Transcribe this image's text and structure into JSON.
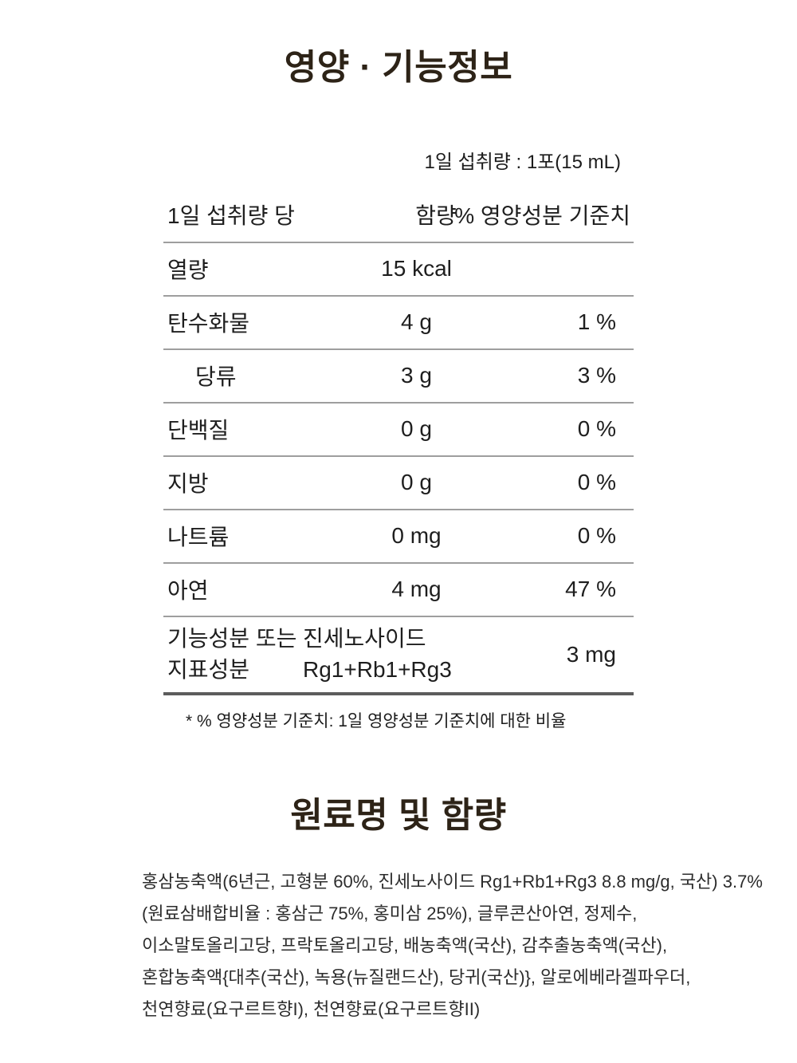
{
  "colors": {
    "background": "#ffffff",
    "title": "#2d2317",
    "text": "#1e1e1e",
    "separator": "#9e9e9e",
    "table_bottom_border": "#5c5c5c"
  },
  "nutrition": {
    "title": "영양 · 기능정보",
    "serving_note": "1일 섭취량 : 1포(15 mL)",
    "table": {
      "headers": [
        "1일 섭취량 당",
        "함량",
        "% 영양성분 기준치"
      ],
      "rows": [
        {
          "label": "열량",
          "amount": "15 kcal",
          "percent": ""
        },
        {
          "label": "탄수화물",
          "amount": "4 g",
          "percent": "1 %"
        },
        {
          "label": "당류",
          "amount": "3 g",
          "percent": "3 %"
        },
        {
          "label": "단백질",
          "amount": "0 g",
          "percent": "0 %"
        },
        {
          "label": "지방",
          "amount": "0 g",
          "percent": "0 %"
        },
        {
          "label": "나트륨",
          "amount": "0 mg",
          "percent": "0 %"
        },
        {
          "label": "아연",
          "amount": "4 mg",
          "percent": "47 %"
        },
        {
          "label": "기능성분 또는",
          "label2": "지표성분",
          "amount": "진세노사이드",
          "amount2": "Rg1+Rb1+Rg3",
          "percent": "3 mg"
        }
      ],
      "footnote": "* % 영양성분 기준치: 1일 영양성분 기준치에 대한 비율"
    }
  },
  "ingredients": {
    "title": "원료명 및 함량",
    "lines": [
      "홍삼농축액(6년근, 고형분 60%, 진세노사이드 Rg1+Rb1+Rg3 8.8 mg/g, 국산) 3.7%",
      "(원료삼배합비율 : 홍삼근 75%, 홍미삼 25%), 글루콘산아연, 정제수,",
      "이소말토올리고당, 프락토올리고당, 배농축액(국산), 감추출농축액(국산),",
      "혼합농축액{대추(국산), 녹용(뉴질랜드산), 당귀(국산)}, 알로에베라겔파우더,",
      "천연향료(요구르트향I), 천연향료(요구르트향II)"
    ]
  }
}
